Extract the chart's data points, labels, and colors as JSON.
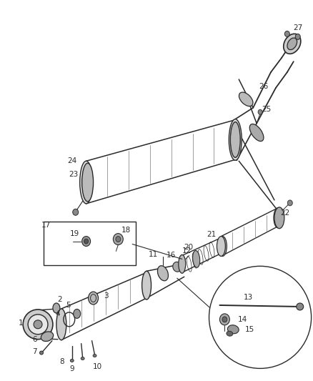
{
  "bg_color": "#ffffff",
  "lc": "#2a2a2a",
  "gray": "#777777",
  "lgray": "#aaaaaa",
  "dgray": "#444444",
  "white": "#ffffff"
}
